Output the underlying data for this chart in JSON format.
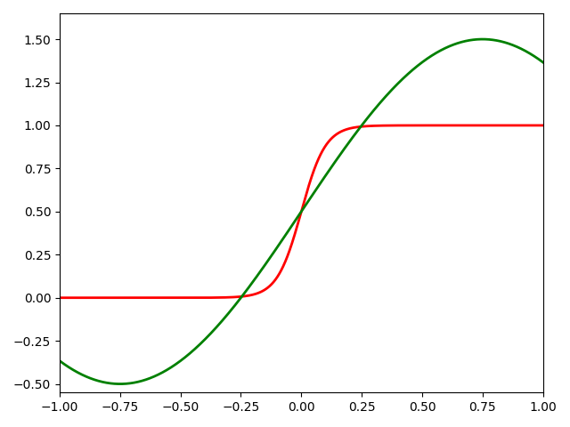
{
  "xlim": [
    -1.0,
    1.0
  ],
  "ylim": [
    -0.55,
    1.65
  ],
  "sigmoid_color": "red",
  "sine_color": "green",
  "intersection_color": "black",
  "intersection_marker": "x",
  "intersection_markersize": 10,
  "intersection_markeredgewidth": 2,
  "sigmoid_k": 20,
  "sine_amplitude": 1.5,
  "sine_phase": 0.25,
  "figsize": [
    6.4,
    4.8
  ],
  "dpi": 100
}
